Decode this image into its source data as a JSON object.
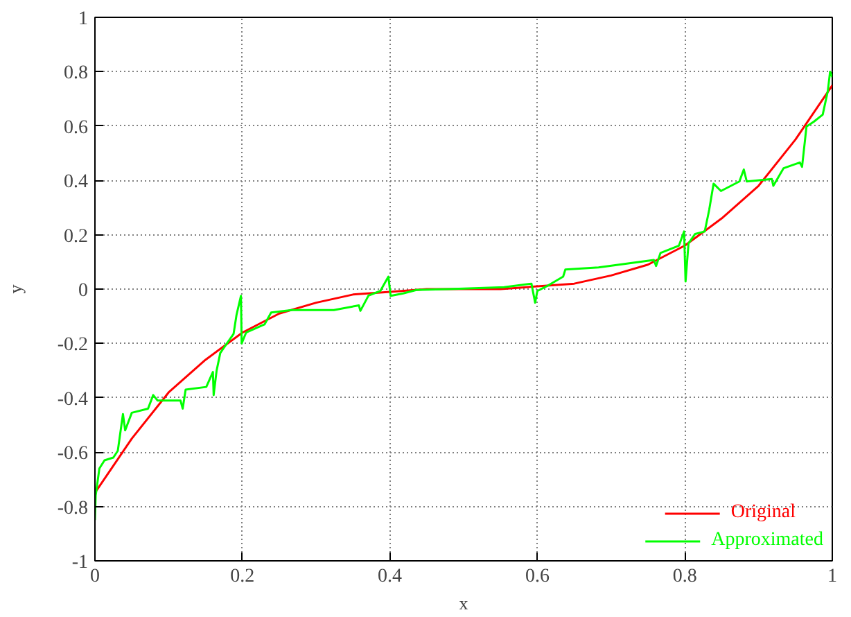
{
  "chart_data": {
    "type": "line",
    "xlabel": "x",
    "ylabel": "y",
    "xlim": [
      0,
      1
    ],
    "ylim": [
      -1,
      1
    ],
    "xticks": [
      0,
      0.2,
      0.4,
      0.6,
      0.8,
      1
    ],
    "yticks": [
      -1,
      -0.8,
      -0.6,
      -0.4,
      -0.2,
      0,
      0.2,
      0.4,
      0.6,
      0.8,
      1
    ],
    "grid": true,
    "legend": "bottom right",
    "line_style": "solid",
    "marker": "none",
    "series": [
      {
        "name": "Original",
        "color": "#ff0000",
        "x": [
          0,
          0.05,
          0.1,
          0.15,
          0.2,
          0.25,
          0.3,
          0.35,
          0.4,
          0.45,
          0.5,
          0.55,
          0.6,
          0.65,
          0.7,
          0.75,
          0.8,
          0.85,
          0.9,
          0.95,
          1
        ],
        "values": [
          -0.75,
          -0.55,
          -0.38,
          -0.26,
          -0.16,
          -0.09,
          -0.05,
          -0.02,
          -0.01,
          0,
          0,
          0,
          0.01,
          0.02,
          0.05,
          0.09,
          0.16,
          0.26,
          0.38,
          0.55,
          0.75
        ]
      },
      {
        "name": "Approximated",
        "color": "#00ff00",
        "x": [
          0,
          0.001,
          0.006,
          0.013,
          0.025,
          0.031,
          0.038,
          0.041,
          0.05,
          0.072,
          0.079,
          0.085,
          0.116,
          0.119,
          0.123,
          0.151,
          0.16,
          0.161,
          0.165,
          0.17,
          0.179,
          0.188,
          0.192,
          0.198,
          0.199,
          0.205,
          0.23,
          0.239,
          0.267,
          0.324,
          0.358,
          0.36,
          0.371,
          0.387,
          0.398,
          0.401,
          0.418,
          0.436,
          0.48,
          0.555,
          0.592,
          0.597,
          0.6,
          0.613,
          0.635,
          0.638,
          0.683,
          0.758,
          0.761,
          0.767,
          0.792,
          0.799,
          0.801,
          0.805,
          0.814,
          0.827,
          0.833,
          0.839,
          0.849,
          0.874,
          0.88,
          0.884,
          0.918,
          0.92,
          0.934,
          0.956,
          0.959,
          0.965,
          0.975,
          0.987,
          0.994,
          0.997,
          1
        ],
        "values": [
          -0.85,
          -0.76,
          -0.66,
          -0.63,
          -0.62,
          -0.595,
          -0.46,
          -0.52,
          -0.455,
          -0.44,
          -0.39,
          -0.41,
          -0.41,
          -0.44,
          -0.37,
          -0.36,
          -0.305,
          -0.39,
          -0.3,
          -0.235,
          -0.2,
          -0.165,
          -0.095,
          -0.025,
          -0.2,
          -0.16,
          -0.13,
          -0.086,
          -0.077,
          -0.077,
          -0.06,
          -0.08,
          -0.024,
          -0.007,
          0.046,
          -0.025,
          -0.016,
          -0.003,
          0,
          0.007,
          0.02,
          -0.05,
          -0.007,
          0.011,
          0.046,
          0.072,
          0.08,
          0.107,
          0.085,
          0.133,
          0.16,
          0.212,
          0.028,
          0.168,
          0.203,
          0.212,
          0.291,
          0.388,
          0.361,
          0.396,
          0.44,
          0.396,
          0.405,
          0.38,
          0.445,
          0.466,
          0.45,
          0.598,
          0.616,
          0.642,
          0.73,
          0.8,
          0.78
        ]
      }
    ]
  }
}
